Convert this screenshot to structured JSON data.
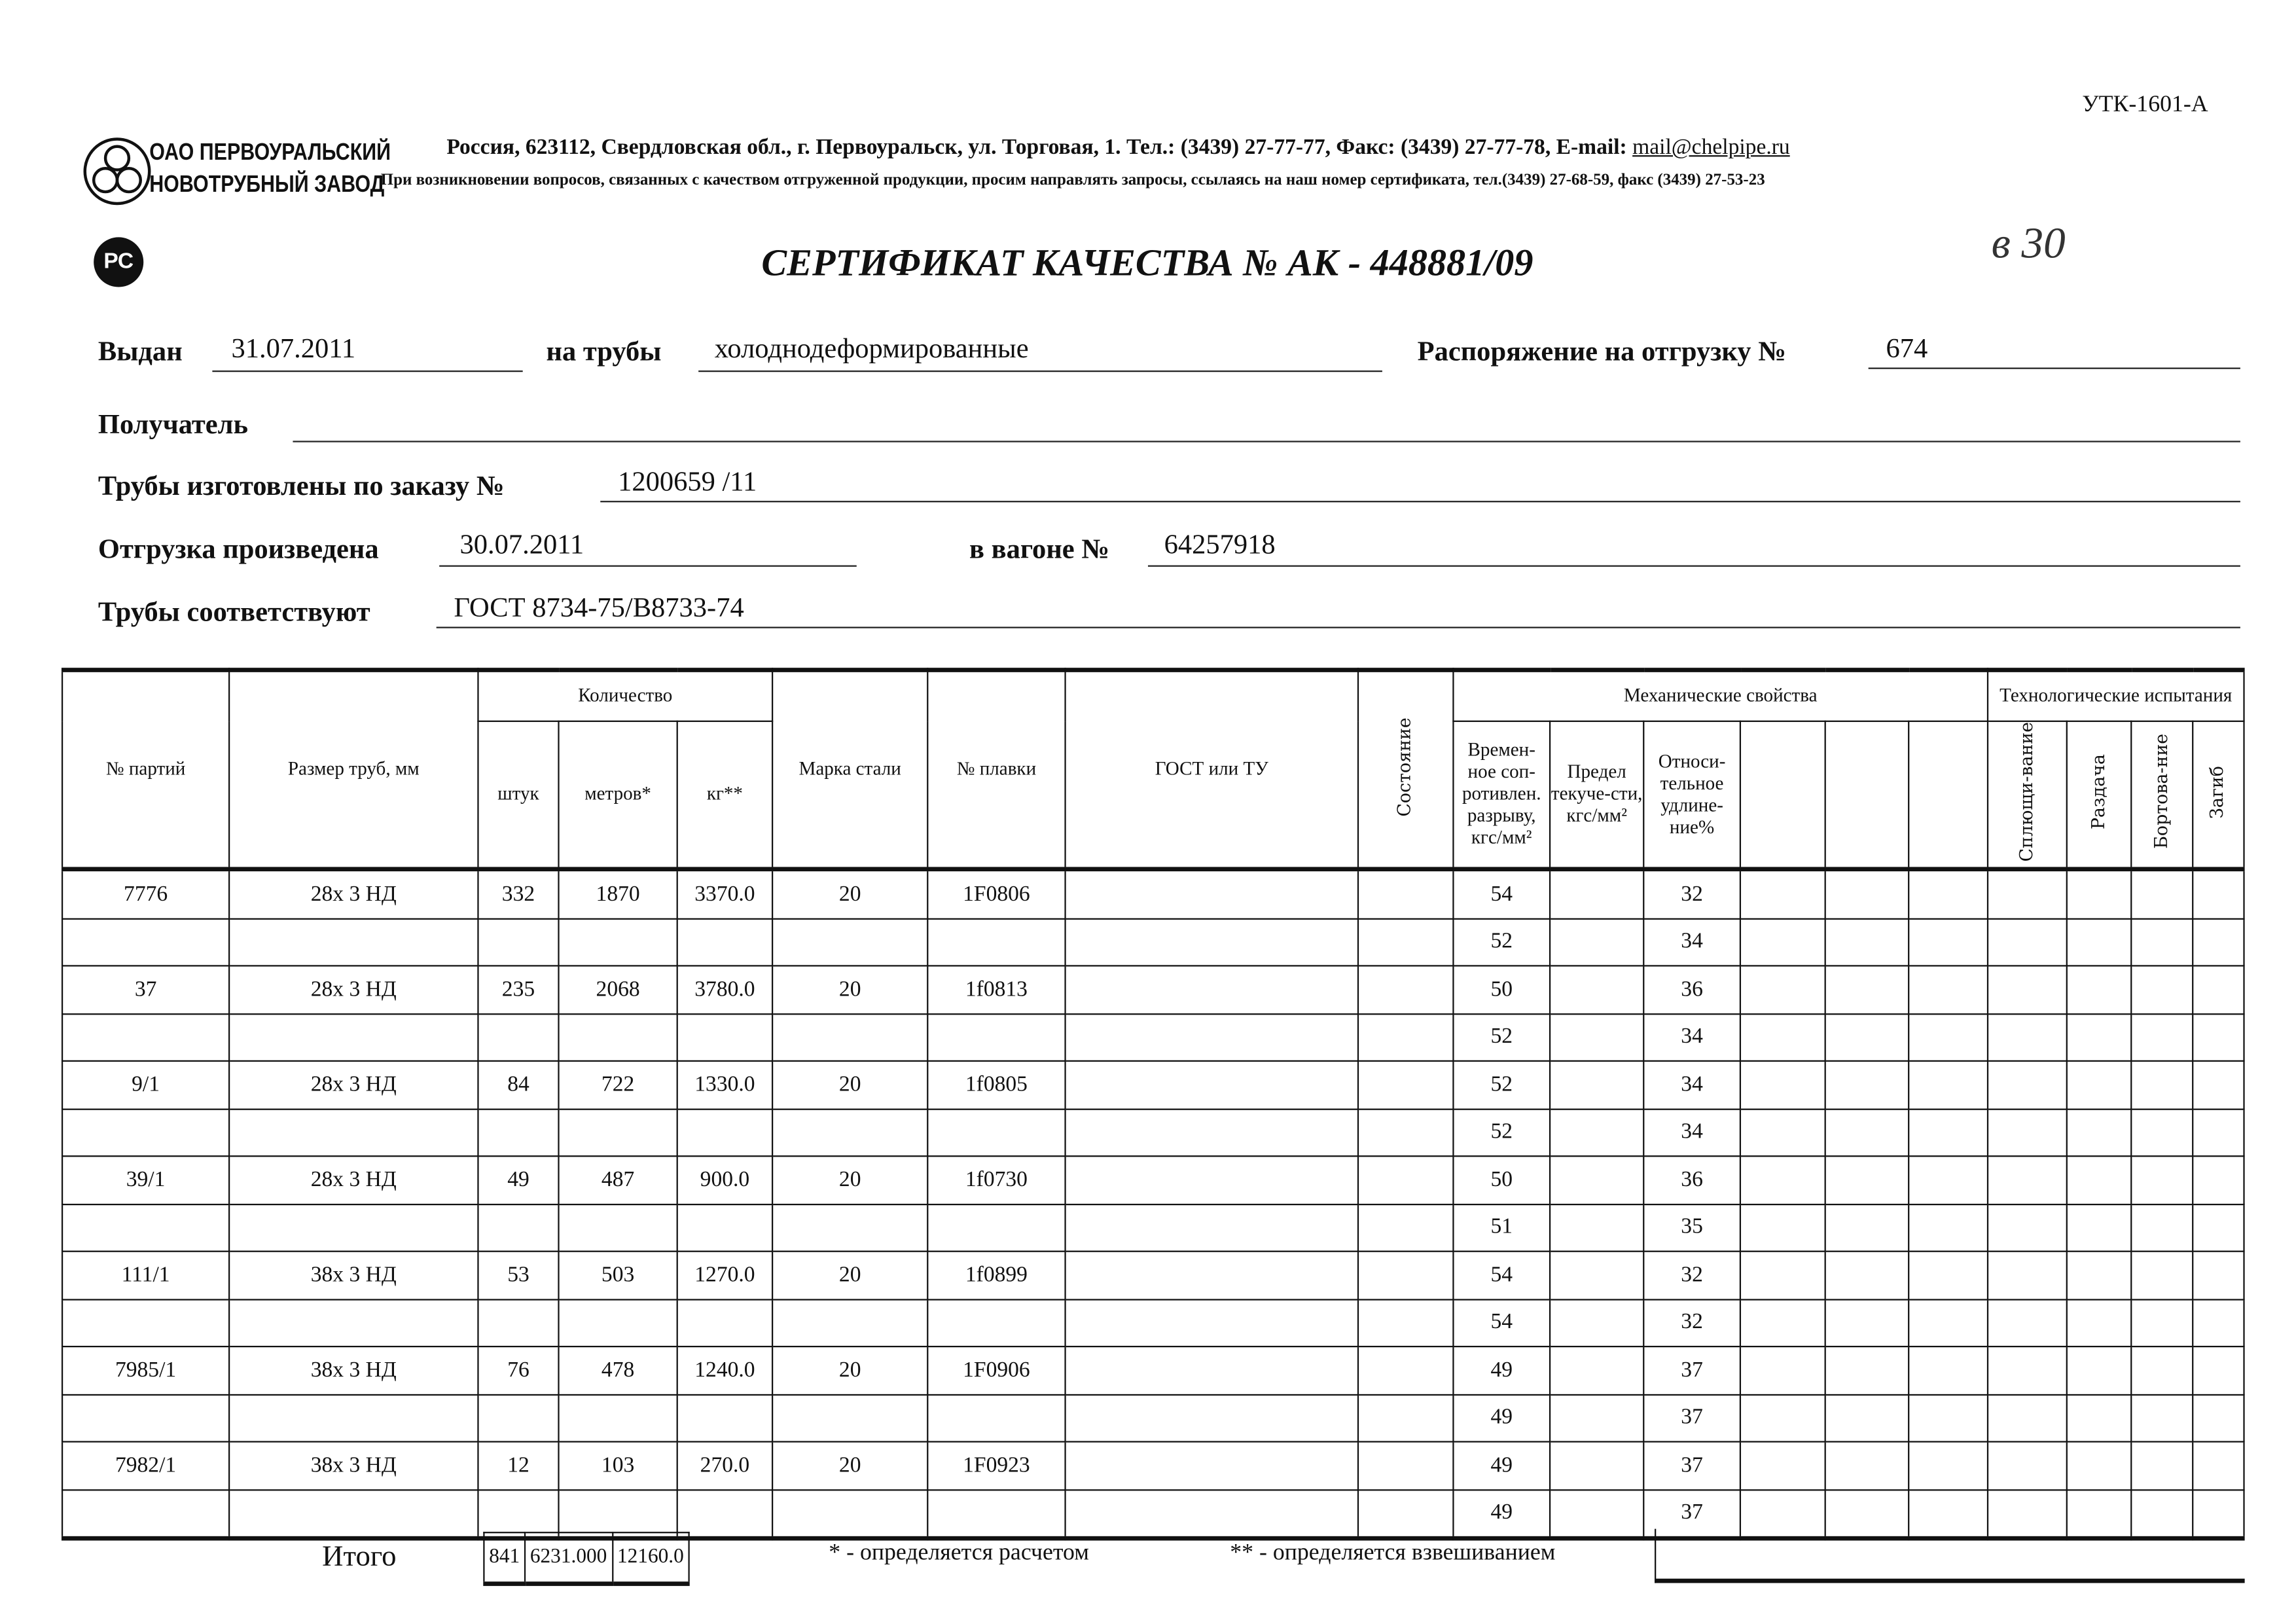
{
  "form_code": "УТК-1601-А",
  "company": {
    "line1": "ОАО ПЕРВОУРАЛЬСКИЙ",
    "line2": "НОВОТРУБНЫЙ ЗАВОД",
    "address": "Россия, 623112, Свердловская обл., г. Первоуральск, ул. Торговая, 1. Тел.: (3439) 27-77-77, Факс: (3439) 27-77-78,  E-mail: ",
    "email": "mail@chelpipe.ru",
    "notice": "При возникновении вопросов, связанных с качеством отгруженной продукции, просим направлять запросы, ссылаясь на наш номер сертификата, тел.(3439) 27-68-59, факс (3439) 27-53-23"
  },
  "rst_logo": "РСТ",
  "title": "СЕРТИФИКАТ КАЧЕСТВА   №  АК -  448881/09",
  "handwritten": "в 30",
  "fields": {
    "issued_label": "Выдан",
    "issued": "31.07.2011",
    "pipes_label": "на трубы",
    "pipes": "холоднодеформированные",
    "order_label": "Распоряжение на отгрузку №",
    "order": "674",
    "recipient_label": "Получатель",
    "recipient": "",
    "made_label": "Трубы изготовлены по заказу №",
    "made": "1200659  /11",
    "shipped_label": "Отгрузка произведена",
    "shipped": "30.07.2011",
    "wagon_label": "в вагоне №",
    "wagon": "64257918",
    "conform_label": "Трубы соответствуют",
    "conform": "ГОСТ 8734-75/В8733-74"
  },
  "headers": {
    "party": "№ партий",
    "size": "Размер труб, мм",
    "qty": "Количество",
    "pcs": "штук",
    "m": "метров*",
    "kg": "кг**",
    "steel": "Марка стали",
    "melt": "№ плавки",
    "gost": "ГОСТ или ТУ",
    "state": "Состояние",
    "mech": "Механические свойства",
    "tensile": "Времен-ное соп-ротивлен. разрыву, кгс/мм²",
    "yield": "Предел текуче-сти, кгс/мм²",
    "elong": "Относи-тельное удлине-ние%",
    "tech": "Технологические испытания",
    "flat": "Сплющи-вание",
    "expand": "Раздача",
    "flange": "Бортова-ние",
    "bend": "Загиб"
  },
  "rows": [
    {
      "party": "7776",
      "size": "28х 3 НД",
      "pcs": "332",
      "m": "1870",
      "kg": "3370.0",
      "steel": "20",
      "melt": "1F0806",
      "mech": [
        [
          "54",
          "32"
        ],
        [
          "52",
          "34"
        ]
      ]
    },
    {
      "party": "37",
      "size": "28х 3 НД",
      "pcs": "235",
      "m": "2068",
      "kg": "3780.0",
      "steel": "20",
      "melt": "1f0813",
      "mech": [
        [
          "50",
          "36"
        ],
        [
          "52",
          "34"
        ]
      ]
    },
    {
      "party": "9/1",
      "size": "28х 3 НД",
      "pcs": "84",
      "m": "722",
      "kg": "1330.0",
      "steel": "20",
      "melt": "1f0805",
      "mech": [
        [
          "52",
          "34"
        ],
        [
          "52",
          "34"
        ]
      ]
    },
    {
      "party": "39/1",
      "size": "28х 3 НД",
      "pcs": "49",
      "m": "487",
      "kg": "900.0",
      "steel": "20",
      "melt": "1f0730",
      "mech": [
        [
          "50",
          "36"
        ],
        [
          "51",
          "35"
        ]
      ]
    },
    {
      "party": "111/1",
      "size": "38х 3 НД",
      "pcs": "53",
      "m": "503",
      "kg": "1270.0",
      "steel": "20",
      "melt": "1f0899",
      "mech": [
        [
          "54",
          "32"
        ],
        [
          "54",
          "32"
        ]
      ]
    },
    {
      "party": "7985/1",
      "size": "38х 3 НД",
      "pcs": "76",
      "m": "478",
      "kg": "1240.0",
      "steel": "20",
      "melt": "1F0906",
      "mech": [
        [
          "49",
          "37"
        ],
        [
          "49",
          "37"
        ]
      ]
    },
    {
      "party": "7982/1",
      "size": "38х 3 НД",
      "pcs": "12",
      "m": "103",
      "kg": "270.0",
      "steel": "20",
      "melt": "1F0923",
      "mech": [
        [
          "49",
          "37"
        ],
        [
          "49",
          "37"
        ]
      ]
    }
  ],
  "totals": {
    "label": "Итого",
    "pcs": "841",
    "m": "6231.000",
    "kg": "12160.0",
    "note1": "* - определяется расчетом",
    "note2": "** - определяется взвешиванием"
  }
}
